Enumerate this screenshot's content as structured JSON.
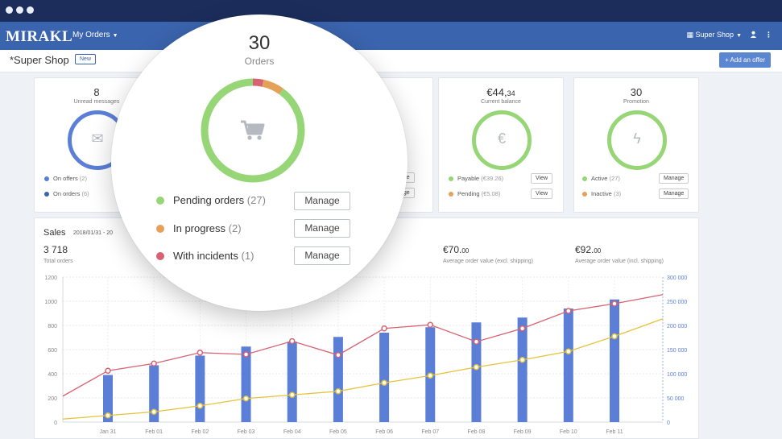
{
  "app": {
    "logo": "MIRAKL"
  },
  "nav": {
    "orders_menu": "My Orders",
    "shop_menu": "Super Shop"
  },
  "subheader": {
    "shop_title": "*Super Shop",
    "new_badge": "New",
    "add_offer": "Add an offer"
  },
  "cards": {
    "messages": {
      "value": "8",
      "label": "Unread messages",
      "legend": [
        {
          "label": "On offers",
          "count": "(2)"
        },
        {
          "label": "On orders",
          "count": "(6)"
        }
      ]
    },
    "balance": {
      "value_main": "€44,",
      "value_cents": "34",
      "label": "Current balance",
      "legend": [
        {
          "label": "Payable",
          "count": "(€39.26)",
          "button": "View"
        },
        {
          "label": "Pending",
          "count": "(€5.08)",
          "button": "View"
        }
      ]
    },
    "promotion": {
      "value": "30",
      "label": "Promotion",
      "legend": [
        {
          "label": "Active",
          "count": "(27)",
          "button": "Manage"
        },
        {
          "label": "Inactive",
          "count": "(3)",
          "button": "Manage"
        }
      ]
    },
    "manage_fragment": "age"
  },
  "orders_widget": {
    "value": "30",
    "label": "Orders",
    "segments": {
      "pending": 27,
      "in_progress": 2,
      "incidents": 1
    },
    "rows": [
      {
        "label": "Pending orders",
        "count": "(27)",
        "button": "Manage"
      },
      {
        "label": "In progress",
        "count": "(2)",
        "button": "Manage"
      },
      {
        "label": "With incidents",
        "count": "(1)",
        "button": "Manage"
      }
    ]
  },
  "sales": {
    "title": "Sales",
    "date_range": "2018/01/31 - 20",
    "total_orders_value": "3 718",
    "total_orders_label": "Total orders",
    "avg_excl_main": "€70.",
    "avg_excl_cents": "00",
    "avg_excl_label": "Average order value (excl. shipping)",
    "avg_incl_main": "€92.",
    "avg_incl_cents": "00",
    "avg_incl_label": "Average order value (incl. shipping)"
  },
  "colors": {
    "green": "#97d676",
    "orange": "#e5a059",
    "red": "#d66272",
    "blue": "#5b7fd6",
    "yellow": "#e5c23a",
    "nav": "#3a64ad"
  },
  "chart_data": {
    "type": "bar",
    "categories": [
      "Jan 31",
      "Feb 01",
      "Feb 02",
      "Feb 03",
      "Feb 04",
      "Feb 05",
      "Feb 06",
      "Feb 07",
      "Feb 08",
      "Feb 09",
      "Feb 10",
      "Feb 11"
    ],
    "ylim": [
      0,
      1200
    ],
    "yticks": [
      "0",
      "200",
      "400",
      "600",
      "800",
      "1000",
      "1200"
    ],
    "y2lim": [
      0,
      300000
    ],
    "y2ticks": [
      "0",
      "50 000",
      "100 000",
      "150 000",
      "200 000",
      "250 000",
      "300 000"
    ],
    "series": [
      {
        "values": [
          390,
          470,
          550,
          625,
          665,
          705,
          740,
          785,
          825,
          865,
          940,
          1015
        ]
      },
      {
        "values": [
          425,
          485,
          575,
          560,
          670,
          555,
          775,
          805,
          665,
          775,
          920,
          980
        ]
      },
      {
        "values": [
          55,
          85,
          135,
          195,
          225,
          255,
          325,
          385,
          455,
          515,
          585,
          710
        ]
      }
    ]
  }
}
